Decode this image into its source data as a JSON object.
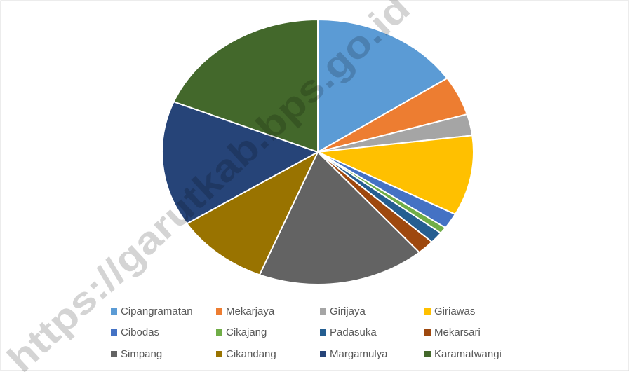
{
  "chart_data": {
    "type": "pie",
    "categories": [
      "Cipangramatan",
      "Mekarjaya",
      "Girijaya",
      "Giriawas",
      "Cibodas",
      "Cikajang",
      "Padasuka",
      "Mekarsari",
      "Simpang",
      "Cikandang",
      "Margamulya",
      "Karamatwangi"
    ],
    "values": [
      15.6,
      4.8,
      2.6,
      9.8,
      1.9,
      0.8,
      1.4,
      1.8,
      17.4,
      9.8,
      15.3,
      18.8
    ],
    "colors": [
      "#5b9bd5",
      "#ed7d31",
      "#a5a5a5",
      "#ffc000",
      "#4472c4",
      "#70ad47",
      "#255e91",
      "#9e480e",
      "#636363",
      "#997300",
      "#264478",
      "#43682b"
    ],
    "legend": "bottom"
  },
  "watermark": "https://garutkab.bps.go.id"
}
